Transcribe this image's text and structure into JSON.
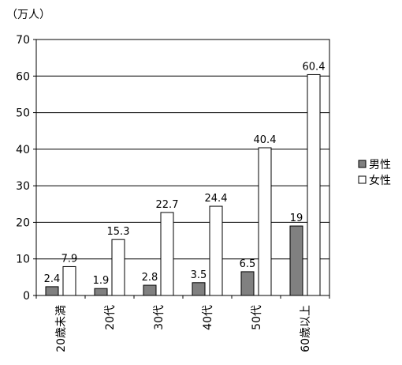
{
  "chart_data": {
    "type": "bar",
    "unit_label": "（万人）",
    "categories": [
      "20歳未満",
      "20代",
      "30代",
      "40代",
      "50代",
      "60歳以上"
    ],
    "series": [
      {
        "name": "男性",
        "values": [
          2.4,
          1.9,
          2.8,
          3.5,
          6.5,
          19
        ],
        "color": "#808080"
      },
      {
        "name": "女性",
        "values": [
          7.9,
          15.3,
          22.7,
          24.4,
          40.4,
          60.4
        ],
        "color": "#ffffff"
      }
    ],
    "data_labels": [
      [
        "2.4",
        "1.9",
        "2.8",
        "3.5",
        "6.5",
        "19"
      ],
      [
        "7.9",
        "15.3",
        "22.7",
        "24.4",
        "40.4",
        "60.4"
      ]
    ],
    "ylim": [
      0,
      70
    ],
    "yticks": [
      0,
      10,
      20,
      30,
      40,
      50,
      60,
      70
    ],
    "grid": true,
    "legend_position": "right"
  }
}
